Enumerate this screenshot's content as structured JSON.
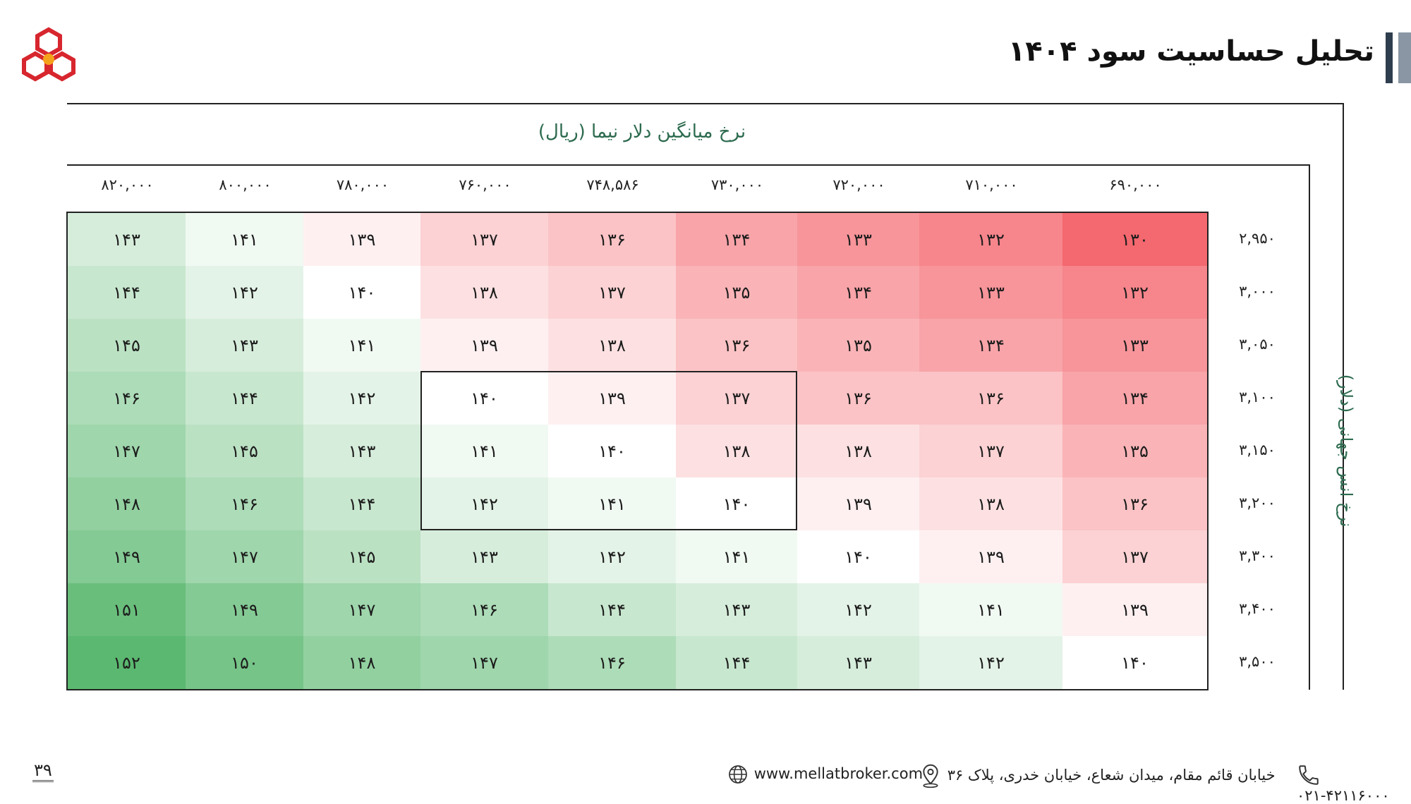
{
  "header": {
    "title": "تحلیل حساسیت سود ۱۴۰۴"
  },
  "axes": {
    "column_title": "نرخ میانگین دلار نیما (ریال)",
    "row_title": "نرخ انس جهانی (دلار)"
  },
  "columns": [
    "۸۲۰,۰۰۰",
    "۸۰۰,۰۰۰",
    "۷۸۰,۰۰۰",
    "۷۶۰,۰۰۰",
    "۷۴۸,۵۸۶",
    "۷۳۰,۰۰۰",
    "۷۲۰,۰۰۰",
    "۷۱۰,۰۰۰",
    "۶۹۰,۰۰۰"
  ],
  "rows": [
    "۲,۹۵۰",
    "۳,۰۰۰",
    "۳,۰۵۰",
    "۳,۱۰۰",
    "۳,۱۵۰",
    "۳,۲۰۰",
    "۳,۳۰۰",
    "۳,۴۰۰",
    "۳,۵۰۰"
  ],
  "cells": [
    [
      "۱۴۳",
      "۱۴۱",
      "۱۳۹",
      "۱۳۷",
      "۱۳۶",
      "۱۳۴",
      "۱۳۳",
      "۱۳۲",
      "۱۳۰"
    ],
    [
      "۱۴۴",
      "۱۴۲",
      "۱۴۰",
      "۱۳۸",
      "۱۳۷",
      "۱۳۵",
      "۱۳۴",
      "۱۳۳",
      "۱۳۲"
    ],
    [
      "۱۴۵",
      "۱۴۳",
      "۱۴۱",
      "۱۳۹",
      "۱۳۸",
      "۱۳۶",
      "۱۳۵",
      "۱۳۴",
      "۱۳۳"
    ],
    [
      "۱۴۶",
      "۱۴۴",
      "۱۴۲",
      "۱۴۰",
      "۱۳۹",
      "۱۳۷",
      "۱۳۶",
      "۱۳۶",
      "۱۳۴"
    ],
    [
      "۱۴۷",
      "۱۴۵",
      "۱۴۳",
      "۱۴۱",
      "۱۴۰",
      "۱۳۸",
      "۱۳۸",
      "۱۳۷",
      "۱۳۵"
    ],
    [
      "۱۴۸",
      "۱۴۶",
      "۱۴۴",
      "۱۴۲",
      "۱۴۱",
      "۱۴۰",
      "۱۳۹",
      "۱۳۸",
      "۱۳۶"
    ],
    [
      "۱۴۹",
      "۱۴۷",
      "۱۴۵",
      "۱۴۳",
      "۱۴۲",
      "۱۴۱",
      "۱۴۰",
      "۱۳۹",
      "۱۳۷"
    ],
    [
      "۱۵۱",
      "۱۴۹",
      "۱۴۷",
      "۱۴۶",
      "۱۴۴",
      "۱۴۳",
      "۱۴۲",
      "۱۴۱",
      "۱۳۹"
    ],
    [
      "۱۵۲",
      "۱۵۰",
      "۱۴۸",
      "۱۴۷",
      "۱۴۶",
      "۱۴۴",
      "۱۴۳",
      "۱۴۲",
      "۱۴۰"
    ]
  ],
  "colors": {
    "low": "#f4686f",
    "mid": "#ffffff",
    "high": "#5bb870",
    "heading_accent": "#2d6b4f"
  },
  "footer": {
    "phone": "۰۲۱-۴۲۱۱۶۰۰۰",
    "address": "خیابان قائم مقام، میدان شعاع، خیابان خدری، پلاک ۳۶",
    "website": "www.mellatbroker.com",
    "page_number": "۳۹"
  }
}
